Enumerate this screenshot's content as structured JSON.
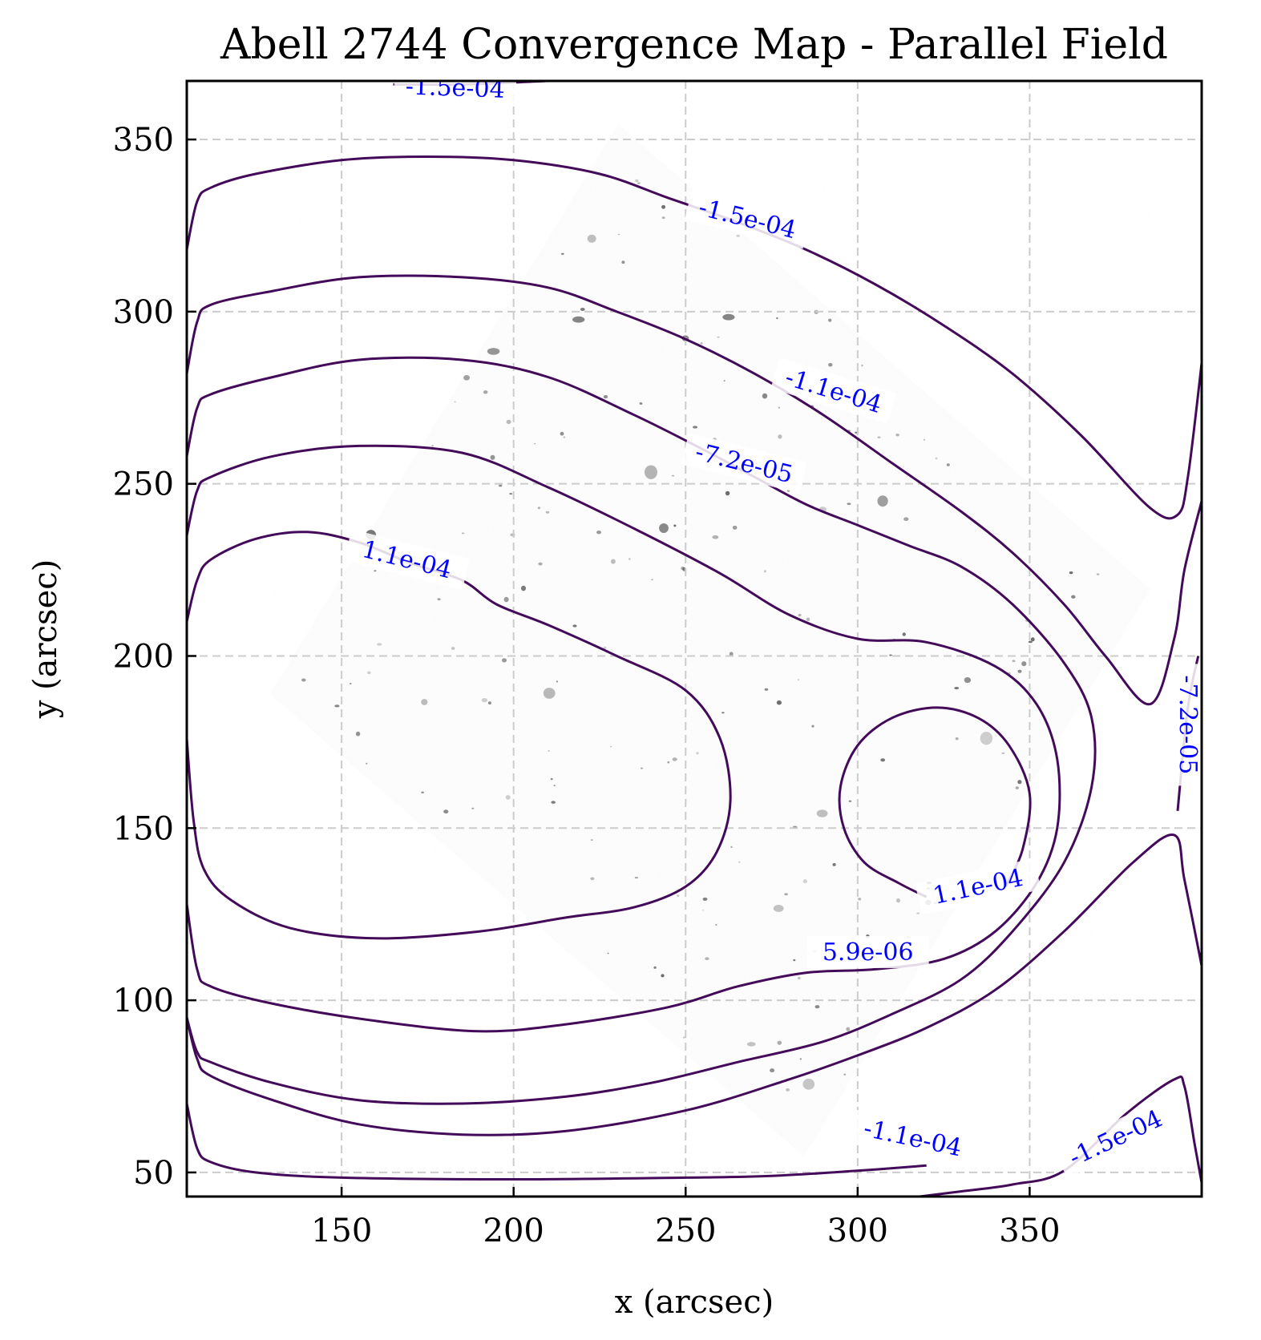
{
  "chart_data": {
    "type": "contour",
    "title": "Abell 2744 Convergence Map - Parallel Field",
    "xlabel": "x (arcsec)",
    "ylabel": "y (arcsec)",
    "xlim": [
      105,
      400
    ],
    "ylim": [
      43,
      367
    ],
    "xticks": [
      150,
      200,
      250,
      300,
      350
    ],
    "yticks": [
      50,
      100,
      150,
      200,
      250,
      300,
      350
    ],
    "grid": true,
    "contour_color": "#440a5a",
    "label_color": "#0000ff",
    "background": "grayscale HST image of galaxy field",
    "contours": [
      {
        "level": "-1.5e-04",
        "paths": [
          [
            [
              105,
              318
            ],
            [
              108,
              332
            ],
            [
              112,
              336
            ],
            [
              125,
              340
            ],
            [
              150,
              344
            ],
            [
              175,
              345
            ],
            [
              200,
              344
            ],
            [
              225,
              340
            ],
            [
              245,
              333
            ],
            [
              265,
              326
            ],
            [
              285,
              318
            ],
            [
              305,
              308
            ],
            [
              325,
              296
            ],
            [
              345,
              282
            ],
            [
              365,
              264
            ],
            [
              385,
              243
            ],
            [
              393,
              241
            ],
            [
              396,
              252
            ],
            [
              400,
              285
            ]
          ],
          [
            [
              165,
              366
            ],
            [
              185,
              366
            ],
            [
              210,
              367
            ]
          ],
          [
            [
              105,
              70
            ],
            [
              108,
              57
            ],
            [
              112,
              53
            ],
            [
              125,
              50
            ],
            [
              150,
              48.5
            ],
            [
              200,
              48
            ],
            [
              250,
              48.5
            ],
            [
              275,
              49
            ],
            [
              300,
              50.5
            ],
            [
              320,
              52
            ]
          ],
          [
            [
              318,
              43
            ],
            [
              330,
              44.5
            ],
            [
              345,
              46.5
            ],
            [
              360,
              50.5
            ],
            [
              378,
              67
            ],
            [
              392,
              77
            ],
            [
              395,
              75
            ],
            [
              398,
              58
            ],
            [
              400,
              47
            ]
          ]
        ],
        "labels": [
          {
            "text": "-1.5e-04",
            "x": 268,
            "y": 327,
            "angle": 14
          },
          {
            "text": "-1.5e-04",
            "x": 183,
            "y": 365,
            "angle": 2
          },
          {
            "text": "-1.5e-04",
            "x": 375,
            "y": 60,
            "angle": -25
          }
        ]
      },
      {
        "level": "-1.1e-04",
        "paths": [
          [
            [
              105,
              282
            ],
            [
              108,
              297
            ],
            [
              112,
              302
            ],
            [
              130,
              306
            ],
            [
              155,
              310
            ],
            [
              185,
              310
            ],
            [
              210,
              307
            ],
            [
              230,
              300
            ],
            [
              250,
              292
            ],
            [
              270,
              282
            ],
            [
              290,
              270
            ],
            [
              310,
              256
            ],
            [
              330,
              242
            ],
            [
              345,
              230
            ],
            [
              360,
              215
            ],
            [
              372,
              200
            ],
            [
              385,
              186
            ],
            [
              392,
              205
            ],
            [
              395,
              225
            ],
            [
              400,
              245
            ]
          ],
          [
            [
              105,
              95
            ],
            [
              108,
              83
            ],
            [
              112,
              78
            ],
            [
              130,
              71
            ],
            [
              155,
              64
            ],
            [
              185,
              61
            ],
            [
              215,
              62
            ],
            [
              250,
              68
            ],
            [
              280,
              77
            ],
            [
              300,
              84
            ],
            [
              320,
              92
            ],
            [
              340,
              103
            ],
            [
              360,
              120
            ],
            [
              380,
              140
            ],
            [
              392,
              148
            ],
            [
              395,
              135
            ],
            [
              400,
              110
            ]
          ]
        ],
        "labels": [
          {
            "text": "-1.1e-04",
            "x": 293,
            "y": 277,
            "angle": 17
          },
          {
            "text": "-1.1e-04",
            "x": 316,
            "y": 60,
            "angle": 12
          }
        ]
      },
      {
        "level": "-7.2e-05",
        "paths": [
          [
            [
              105,
              258
            ],
            [
              108,
              272
            ],
            [
              112,
              276
            ],
            [
              130,
              281
            ],
            [
              155,
              286
            ],
            [
              185,
              286
            ],
            [
              210,
              281
            ],
            [
              235,
              270
            ],
            [
              255,
              260
            ],
            [
              270,
              252
            ],
            [
              285,
              244
            ],
            [
              300,
              238
            ],
            [
              315,
              232
            ],
            [
              330,
              226
            ],
            [
              345,
              215
            ],
            [
              360,
              198
            ],
            [
              368,
              182
            ],
            [
              368,
              162
            ],
            [
              360,
              140
            ],
            [
              345,
              120
            ],
            [
              330,
              106
            ],
            [
              310,
              96
            ],
            [
              290,
              88
            ],
            [
              265,
              82
            ],
            [
              240,
              76
            ],
            [
              215,
              72
            ],
            [
              185,
              70
            ],
            [
              155,
              71
            ],
            [
              130,
              76
            ],
            [
              112,
              82
            ],
            [
              108,
              85
            ],
            [
              105,
              95
            ]
          ],
          [
            [
              393,
              155
            ],
            [
              396,
              185
            ],
            [
              399,
              200
            ]
          ]
        ],
        "labels": [
          {
            "text": "-7.2e-05",
            "x": 267,
            "y": 256,
            "angle": 14
          },
          {
            "text": "-7.2e-05",
            "x": 396,
            "y": 180,
            "angle": 90
          }
        ]
      },
      {
        "level": "5.9e-06",
        "paths": [
          [
            [
              105,
              235
            ],
            [
              108,
              248
            ],
            [
              112,
              252
            ],
            [
              130,
              258
            ],
            [
              155,
              261
            ],
            [
              185,
              259
            ],
            [
              210,
              249
            ],
            [
              235,
              237
            ],
            [
              260,
              224
            ],
            [
              280,
              212
            ],
            [
              300,
              205
            ],
            [
              320,
              204
            ],
            [
              340,
              197
            ],
            [
              352,
              186
            ],
            [
              358,
              170
            ],
            [
              358,
              150
            ],
            [
              352,
              134
            ],
            [
              340,
              120
            ],
            [
              325,
              112
            ],
            [
              305,
              109
            ],
            [
              285,
              108
            ],
            [
              265,
              104
            ],
            [
              245,
              98
            ],
            [
              215,
              93
            ],
            [
              190,
              91
            ],
            [
              160,
              94
            ],
            [
              130,
              99
            ],
            [
              112,
              104
            ],
            [
              108,
              109
            ],
            [
              105,
              128
            ]
          ]
        ],
        "labels": [
          {
            "text": "5.9e-06",
            "x": 303,
            "y": 114,
            "angle": 0
          }
        ]
      },
      {
        "level": "1.1e-04",
        "paths": [
          [
            [
              105,
              210
            ],
            [
              108,
              222
            ],
            [
              112,
              228
            ],
            [
              125,
              234
            ],
            [
              140,
              236
            ],
            [
              155,
              233
            ],
            [
              170,
              227
            ],
            [
              185,
              222
            ],
            [
              195,
              215
            ],
            [
              210,
              209
            ],
            [
              230,
              200
            ],
            [
              250,
              190
            ],
            [
              260,
              176
            ],
            [
              263,
              158
            ],
            [
              259,
              143
            ],
            [
              250,
              133
            ],
            [
              235,
              127
            ],
            [
              215,
              124
            ],
            [
              190,
              120
            ],
            [
              160,
              118
            ],
            [
              135,
              121
            ],
            [
              118,
              129
            ],
            [
              110,
              138
            ],
            [
              107,
              152
            ],
            [
              105,
              176
            ]
          ],
          [
            [
              320,
              130
            ],
            [
              312,
              134
            ],
            [
              302,
              140
            ],
            [
              296,
              150
            ],
            [
              295,
              162
            ],
            [
              300,
              174
            ],
            [
              310,
              182
            ],
            [
              323,
              185
            ],
            [
              335,
              182
            ],
            [
              344,
              174
            ],
            [
              350,
              160
            ],
            [
              348,
              144
            ],
            [
              343,
              133
            ]
          ]
        ],
        "labels": [
          {
            "text": "1.1e-04",
            "x": 169,
            "y": 228,
            "angle": 14
          },
          {
            "text": "1.1e-04",
            "x": 335,
            "y": 133,
            "angle": -12
          }
        ]
      }
    ]
  }
}
